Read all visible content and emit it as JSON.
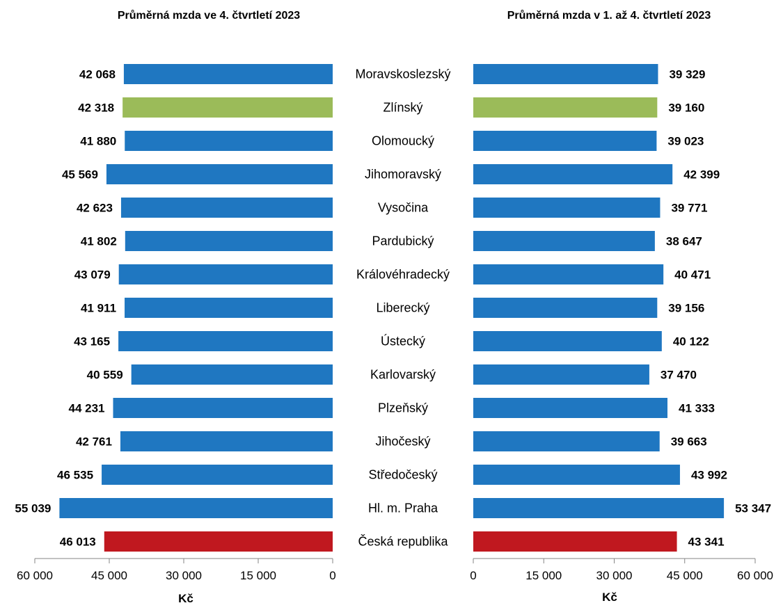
{
  "titles": {
    "left": "Průměrná mzda ve 4. čtvrtletí 2023",
    "right": "Průměrná mzda v 1. až 4. čtvrtletí 2023"
  },
  "axis_unit": "Kč",
  "colors": {
    "default": "#1f77c1",
    "highlight": "#9bbb59",
    "total": "#c0181f"
  },
  "chart_data": [
    {
      "type": "bar",
      "orientation": "horizontal",
      "direction": "reversed",
      "title": "Průměrná mzda ve 4. čtvrtletí 2023",
      "xlabel": "Kč",
      "xlim": [
        0,
        60000
      ],
      "ticks": [
        "60 000",
        "45 000",
        "30 000",
        "15 000",
        "0"
      ],
      "categories": [
        "Moravskoslezský",
        "Zlínský",
        "Olomoucký",
        "Jihomoravský",
        "Vysočina",
        "Pardubický",
        "Královéhradecký",
        "Liberecký",
        "Ústecký",
        "Karlovarský",
        "Plzeňský",
        "Jihočeský",
        "Středočeský",
        "Hl. m. Praha",
        "Česká republika"
      ],
      "values": [
        42068,
        42318,
        41880,
        45569,
        42623,
        41802,
        43079,
        41911,
        43165,
        40559,
        44231,
        42761,
        46535,
        55039,
        46013
      ],
      "labels": [
        "42 068",
        "42 318",
        "41 880",
        "45 569",
        "42 623",
        "41 802",
        "43 079",
        "41 911",
        "43 165",
        "40 559",
        "44 231",
        "42 761",
        "46 535",
        "55 039",
        "46 013"
      ]
    },
    {
      "type": "bar",
      "orientation": "horizontal",
      "direction": "normal",
      "title": "Průměrná mzda v 1. až 4. čtvrtletí 2023",
      "xlabel": "Kč",
      "xlim": [
        0,
        60000
      ],
      "ticks": [
        "0",
        "15 000",
        "30 000",
        "45 000",
        "60 000"
      ],
      "categories": [
        "Moravskoslezský",
        "Zlínský",
        "Olomoucký",
        "Jihomoravský",
        "Vysočina",
        "Pardubický",
        "Královéhradecký",
        "Liberecký",
        "Ústecký",
        "Karlovarský",
        "Plzeňský",
        "Jihočeský",
        "Středočeský",
        "Hl. m. Praha",
        "Česká republika"
      ],
      "values": [
        39329,
        39160,
        39023,
        42399,
        39771,
        38647,
        40471,
        39156,
        40122,
        37470,
        41333,
        39663,
        43992,
        53347,
        43341
      ],
      "labels": [
        "39 329",
        "39 160",
        "39 023",
        "42 399",
        "39 771",
        "38 647",
        "40 471",
        "39 156",
        "40 122",
        "37 470",
        "41 333",
        "39 663",
        "43 992",
        "53 347",
        "43 341"
      ]
    }
  ]
}
